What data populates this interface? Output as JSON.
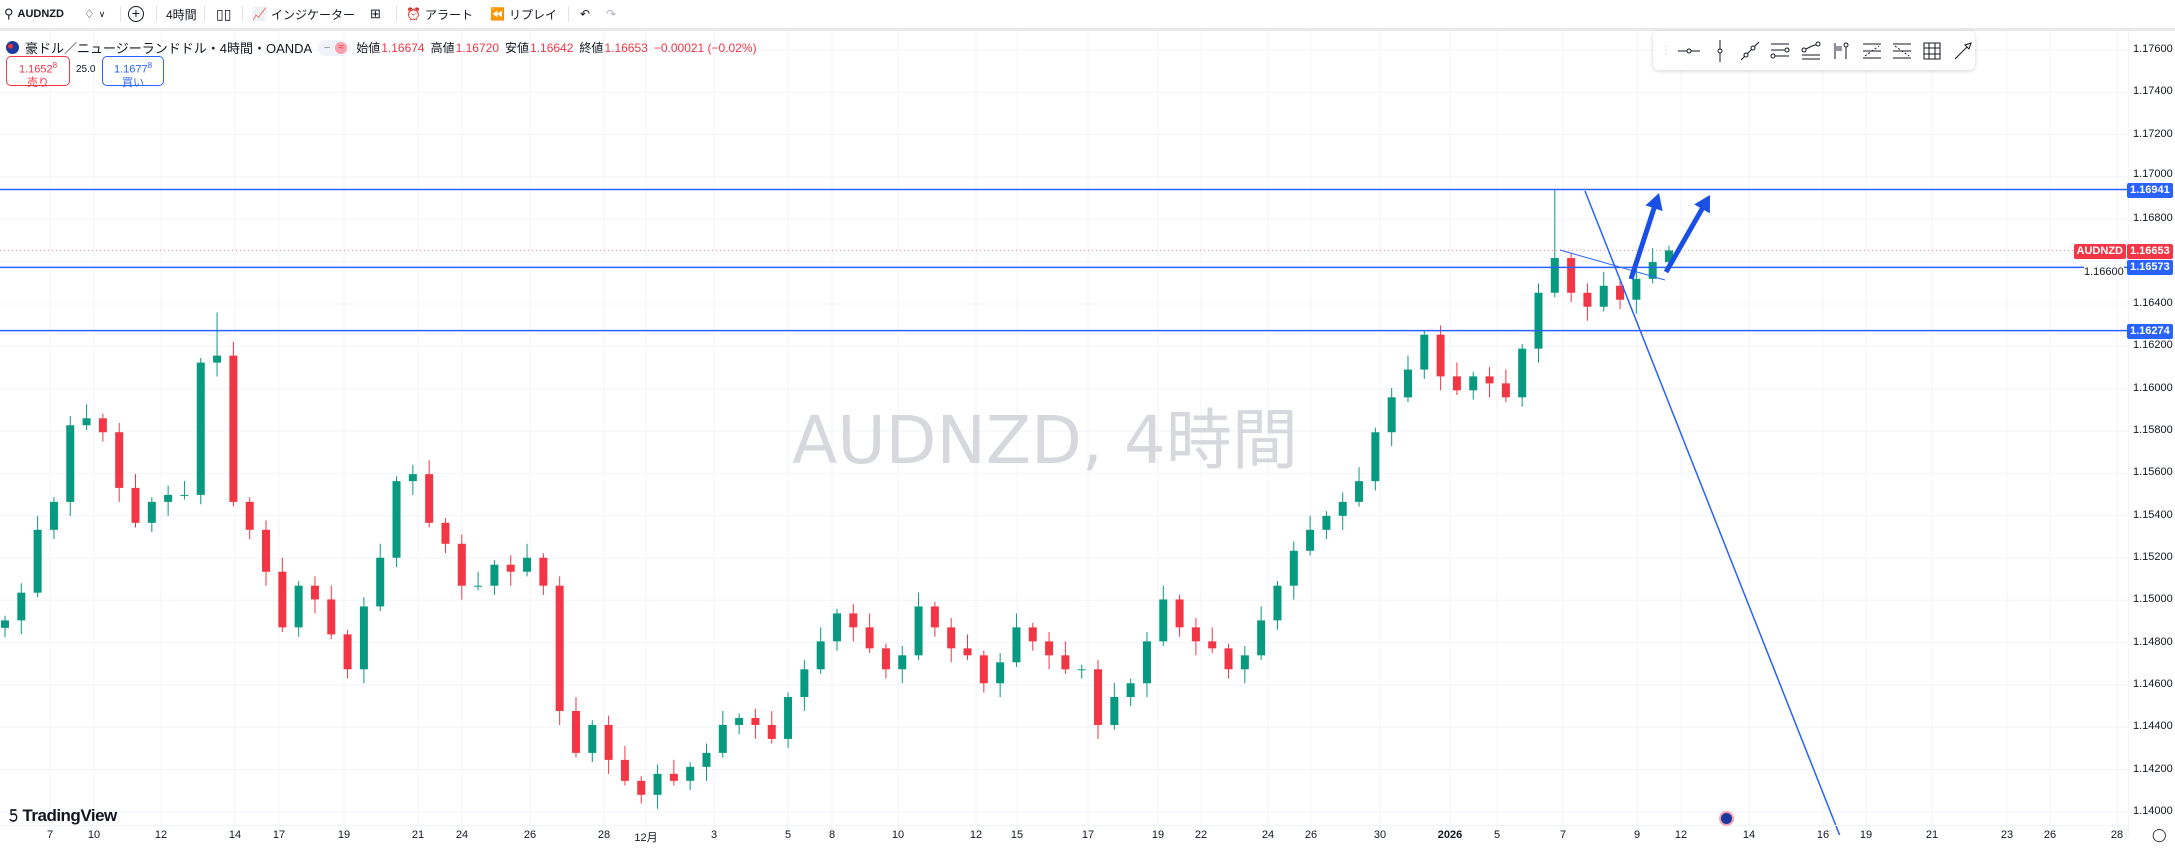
{
  "toolbar": {
    "symbol": "AUDNZD",
    "interval": "4時間",
    "indicators_label": "インジケーター",
    "alert_label": "アラート",
    "replay_label": "リプレイ"
  },
  "legend": {
    "title": "豪ドル／ニュージーランドドル・4時間・OANDA",
    "open_label": "始値",
    "open": "1.16674",
    "high_label": "高値",
    "high": "1.16720",
    "low_label": "安値",
    "low": "1.16642",
    "close_label": "終値",
    "close": "1.16653",
    "change": "−0.00021 (−0.02%)"
  },
  "trade": {
    "sell_price": "1.1652",
    "sell_sup": "8",
    "sell_label": "売り",
    "spread": "25.0",
    "buy_price": "1.1677",
    "buy_sup": "8",
    "buy_label": "買い"
  },
  "watermark": "AUDNZD, 4時間",
  "branding": "TradingView",
  "price_axis": {
    "ticks": [
      "1.17600",
      "1.17400",
      "1.17200",
      "1.17000",
      "1.16800",
      "1.16600",
      "1.16400",
      "1.16200",
      "1.16000",
      "1.15800",
      "1.15600",
      "1.15400",
      "1.15200",
      "1.15000",
      "1.14800",
      "1.14600",
      "1.14400",
      "1.14200",
      "1.14000"
    ],
    "current_symbol": "AUDNZD",
    "current_price": "1.16653",
    "levels": [
      "1.16941",
      "1.16573",
      "1.16274"
    ]
  },
  "time_axis": {
    "ticks": [
      "7",
      "10",
      "12",
      "14",
      "17",
      "19",
      "21",
      "24",
      "26",
      "28",
      "12月",
      "3",
      "5",
      "8",
      "10",
      "12",
      "15",
      "17",
      "19",
      "22",
      "24",
      "26",
      "30",
      "2026",
      "5",
      "7",
      "9",
      "12",
      "14",
      "16",
      "19",
      "21",
      "23",
      "26",
      "28"
    ]
  },
  "colors": {
    "up": "#089981",
    "down": "#f23645",
    "line": "#2962ff",
    "arrow": "#1a4fe6"
  },
  "icons": {
    "drawbar": [
      "drag-handle",
      "horizontal-line",
      "vertical-line",
      "trend-line",
      "parallel-channel",
      "regression-trend",
      "flag-mark",
      "fib-retracement",
      "fib-extension",
      "gann-box",
      "arrow-tool"
    ]
  },
  "chart_data": {
    "type": "candlestick",
    "symbol": "AUDNZD",
    "interval": "4時間",
    "ylim": [
      1.139,
      1.1775
    ],
    "first_open": 1.1487,
    "closes": [
      1.14905,
      1.15036,
      1.15333,
      1.15465,
      1.15827,
      1.1586,
      1.15794,
      1.15531,
      1.15366,
      1.15465,
      1.15498,
      1.15498,
      1.16123,
      1.16156,
      1.15465,
      1.15333,
      1.15135,
      1.14872,
      1.15069,
      1.15004,
      1.14839,
      1.14674,
      1.14971,
      1.15201,
      1.15563,
      1.15596,
      1.15366,
      1.15267,
      1.15069,
      1.15069,
      1.15168,
      1.15135,
      1.15201,
      1.15069,
      1.14477,
      1.14279,
      1.14411,
      1.14246,
      1.14147,
      1.14081,
      1.1418,
      1.14147,
      1.14213,
      1.14279,
      1.14411,
      1.14444,
      1.14411,
      1.14345,
      1.14543,
      1.14674,
      1.14806,
      1.14938,
      1.14872,
      1.14773,
      1.14674,
      1.1474,
      1.14971,
      1.14872,
      1.14773,
      1.1474,
      1.14608,
      1.14707,
      1.14872,
      1.14806,
      1.1474,
      1.14674,
      1.14674,
      1.14411,
      1.14543,
      1.14608,
      1.14806,
      1.15004,
      1.14872,
      1.14806,
      1.14773,
      1.14674,
      1.1474,
      1.14905,
      1.15069,
      1.15234,
      1.15333,
      1.15399,
      1.15465,
      1.15563,
      1.15794,
      1.15959,
      1.1609,
      1.16255,
      1.16058,
      1.15992,
      1.16058,
      1.16025,
      1.15959,
      1.16189,
      1.16453,
      1.16617,
      1.16453,
      1.16387,
      1.16486,
      1.1642,
      1.16519,
      1.16598,
      1.16653
    ],
    "notable_highs": {
      "13": 1.1636,
      "95": 1.16941
    },
    "notable_lows": {
      "39": 1.1404
    },
    "horizontal_levels": [
      1.16941,
      1.16573,
      1.16274
    ],
    "current_price": 1.16653
  }
}
